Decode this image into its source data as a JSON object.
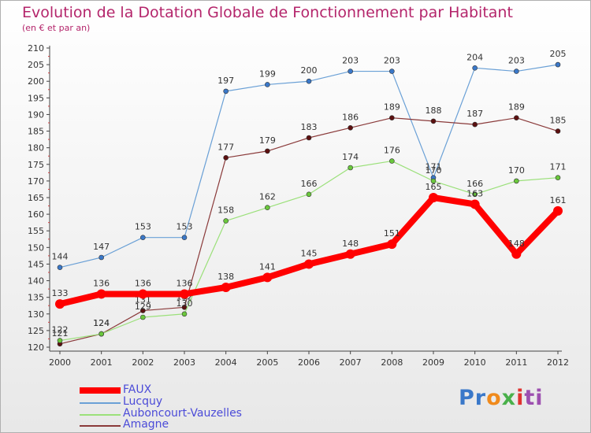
{
  "chart_data": {
    "type": "line",
    "title": "Evolution de la Dotation Globale de Fonctionnement par Habitant",
    "subtitle": "(en € et par an)",
    "x": [
      "2000",
      "2001",
      "2002",
      "2003",
      "2004",
      "2005",
      "2006",
      "2007",
      "2008",
      "2009",
      "2010",
      "2011",
      "2012"
    ],
    "ylim": [
      120,
      210
    ],
    "yticks": [
      120,
      125,
      130,
      135,
      140,
      145,
      150,
      155,
      160,
      165,
      170,
      175,
      180,
      185,
      190,
      195,
      200,
      205,
      210
    ],
    "grid": false,
    "series": [
      {
        "name": "Lucquy",
        "color": "#6aa0d6",
        "marker": "#3a78c9",
        "width": 1.2,
        "values": [
          144,
          147,
          153,
          153,
          197,
          199,
          200,
          203,
          203,
          171,
          204,
          203,
          205
        ]
      },
      {
        "name": "Amagne",
        "color": "#8a3a3a",
        "marker": "#5c1010",
        "width": 1.2,
        "values": [
          121,
          124,
          131,
          132,
          177,
          179,
          183,
          186,
          189,
          188,
          187,
          189,
          185
        ]
      },
      {
        "name": "Auboncourt-Vauzelles",
        "color": "#9be07a",
        "marker": "#6ac83c",
        "width": 1.2,
        "values": [
          122,
          124,
          129,
          130,
          158,
          162,
          166,
          174,
          176,
          170,
          166,
          170,
          171
        ]
      },
      {
        "name": "FAUX",
        "color": "#ff0000",
        "marker": "#ff0000",
        "width": 8,
        "values": [
          133,
          136,
          136,
          136,
          138,
          141,
          145,
          148,
          151,
          165,
          163,
          148,
          161
        ]
      }
    ],
    "legend": [
      "FAUX",
      "Lucquy",
      "Auboncourt-Vauzelles",
      "Amagne"
    ],
    "legend_position": "bottom-left"
  },
  "logo": {
    "text": "Proxiti",
    "parts": [
      "Pr",
      "o",
      "x",
      "i",
      "ti"
    ]
  }
}
